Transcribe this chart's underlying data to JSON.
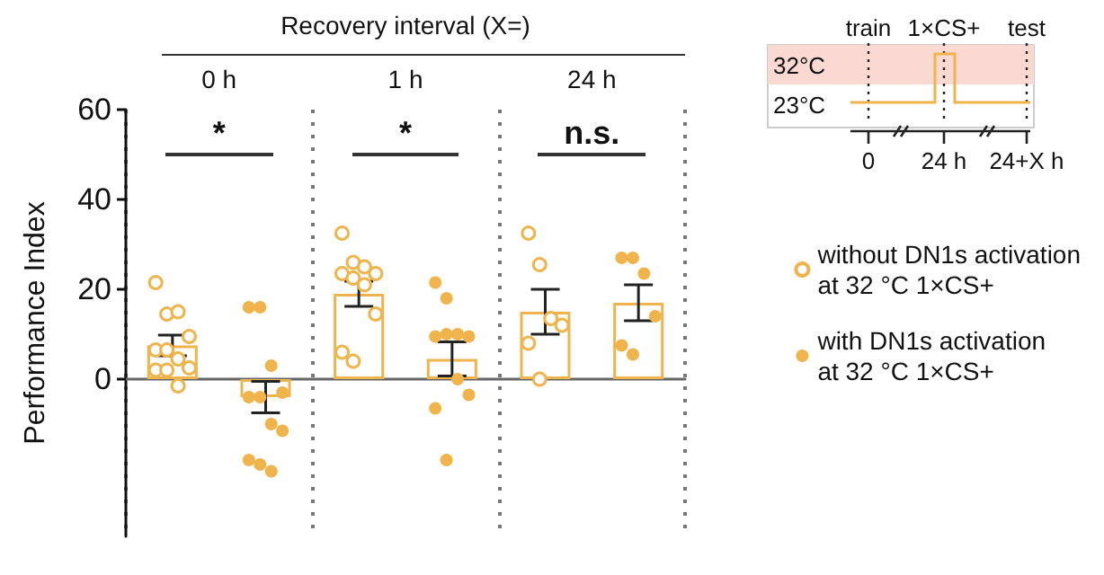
{
  "chart_data": [
    {
      "type": "bar",
      "xlabel": "Recovery interval (X=)",
      "ylabel": "Performance Index",
      "categories": [
        "0 h",
        "1 h",
        "24 h"
      ],
      "series": [
        {
          "color": "#f0b44c",
          "values": [
            7.5,
            19,
            15
          ],
          "errors": [
            2.3,
            2.8,
            5
          ]
        },
        {
          "color": "#f0b44c",
          "values": [
            -4,
            4.5,
            17
          ],
          "errors": [
            3.5,
            3.8,
            4
          ]
        },
        {
          "type": "scatter",
          "name": "without DN1s activation at 32 °C 1×CS+",
          "color": "#f0b44c",
          "x": [
            "0 h",
            "0 h",
            "0 h",
            "0 h",
            "0 h",
            "0 h",
            "0 h",
            "0 h",
            "0 h",
            "0 h",
            "0 h",
            "1 h",
            "1 h",
            "1 h",
            "1 h",
            "1 h",
            "1 h",
            "1 h",
            "1 h",
            "1 h",
            "1 h",
            "24 h",
            "24 h",
            "24 h",
            "24 h",
            "24 h",
            "24 h"
          ],
          "values": [
            21.5,
            14.5,
            15,
            9.5,
            6.5,
            6.5,
            4.5,
            2.5,
            2,
            2,
            -1.5,
            32.5,
            26,
            25,
            23.5,
            23.5,
            22.5,
            21,
            14.5,
            6,
            4,
            32.5,
            25.5,
            13.5,
            12,
            8,
            0
          ]
        },
        {
          "type": "scatter",
          "name": "with DN1s activation at 32 °C 1×CS+",
          "color": "#f0b44c",
          "x": [
            "0 h",
            "0 h",
            "0 h",
            "0 h",
            "0 h",
            "0 h",
            "0 h",
            "0 h",
            "0 h",
            "0 h",
            "0 h",
            "1 h",
            "1 h",
            "1 h",
            "1 h",
            "1 h",
            "1 h",
            "1 h",
            "1 h",
            "1 h",
            "1 h",
            "24 h",
            "24 h",
            "24 h",
            "24 h",
            "24 h",
            "24 h"
          ],
          "values": [
            16,
            16,
            3,
            -3,
            -4,
            -4,
            -10,
            -11.5,
            -18,
            -19,
            -20.5,
            21.5,
            18,
            10,
            9.5,
            9.5,
            10,
            0,
            -3.5,
            -6.5,
            -18,
            27,
            27,
            23.5,
            14,
            7.5,
            5.5
          ]
        }
      ],
      "annotations": [
        "*",
        "*",
        "n.s."
      ],
      "ylim": [
        -35,
        60
      ],
      "yticks": [
        0,
        20,
        40,
        60
      ],
      "grid": "x",
      "legend": "right",
      "marker": "circle"
    },
    {
      "type": "other",
      "annotations": [
        "train",
        "1×CS+",
        "test",
        "32°C",
        "23°C",
        "0",
        "24 h",
        "24+X h"
      ]
    }
  ]
}
